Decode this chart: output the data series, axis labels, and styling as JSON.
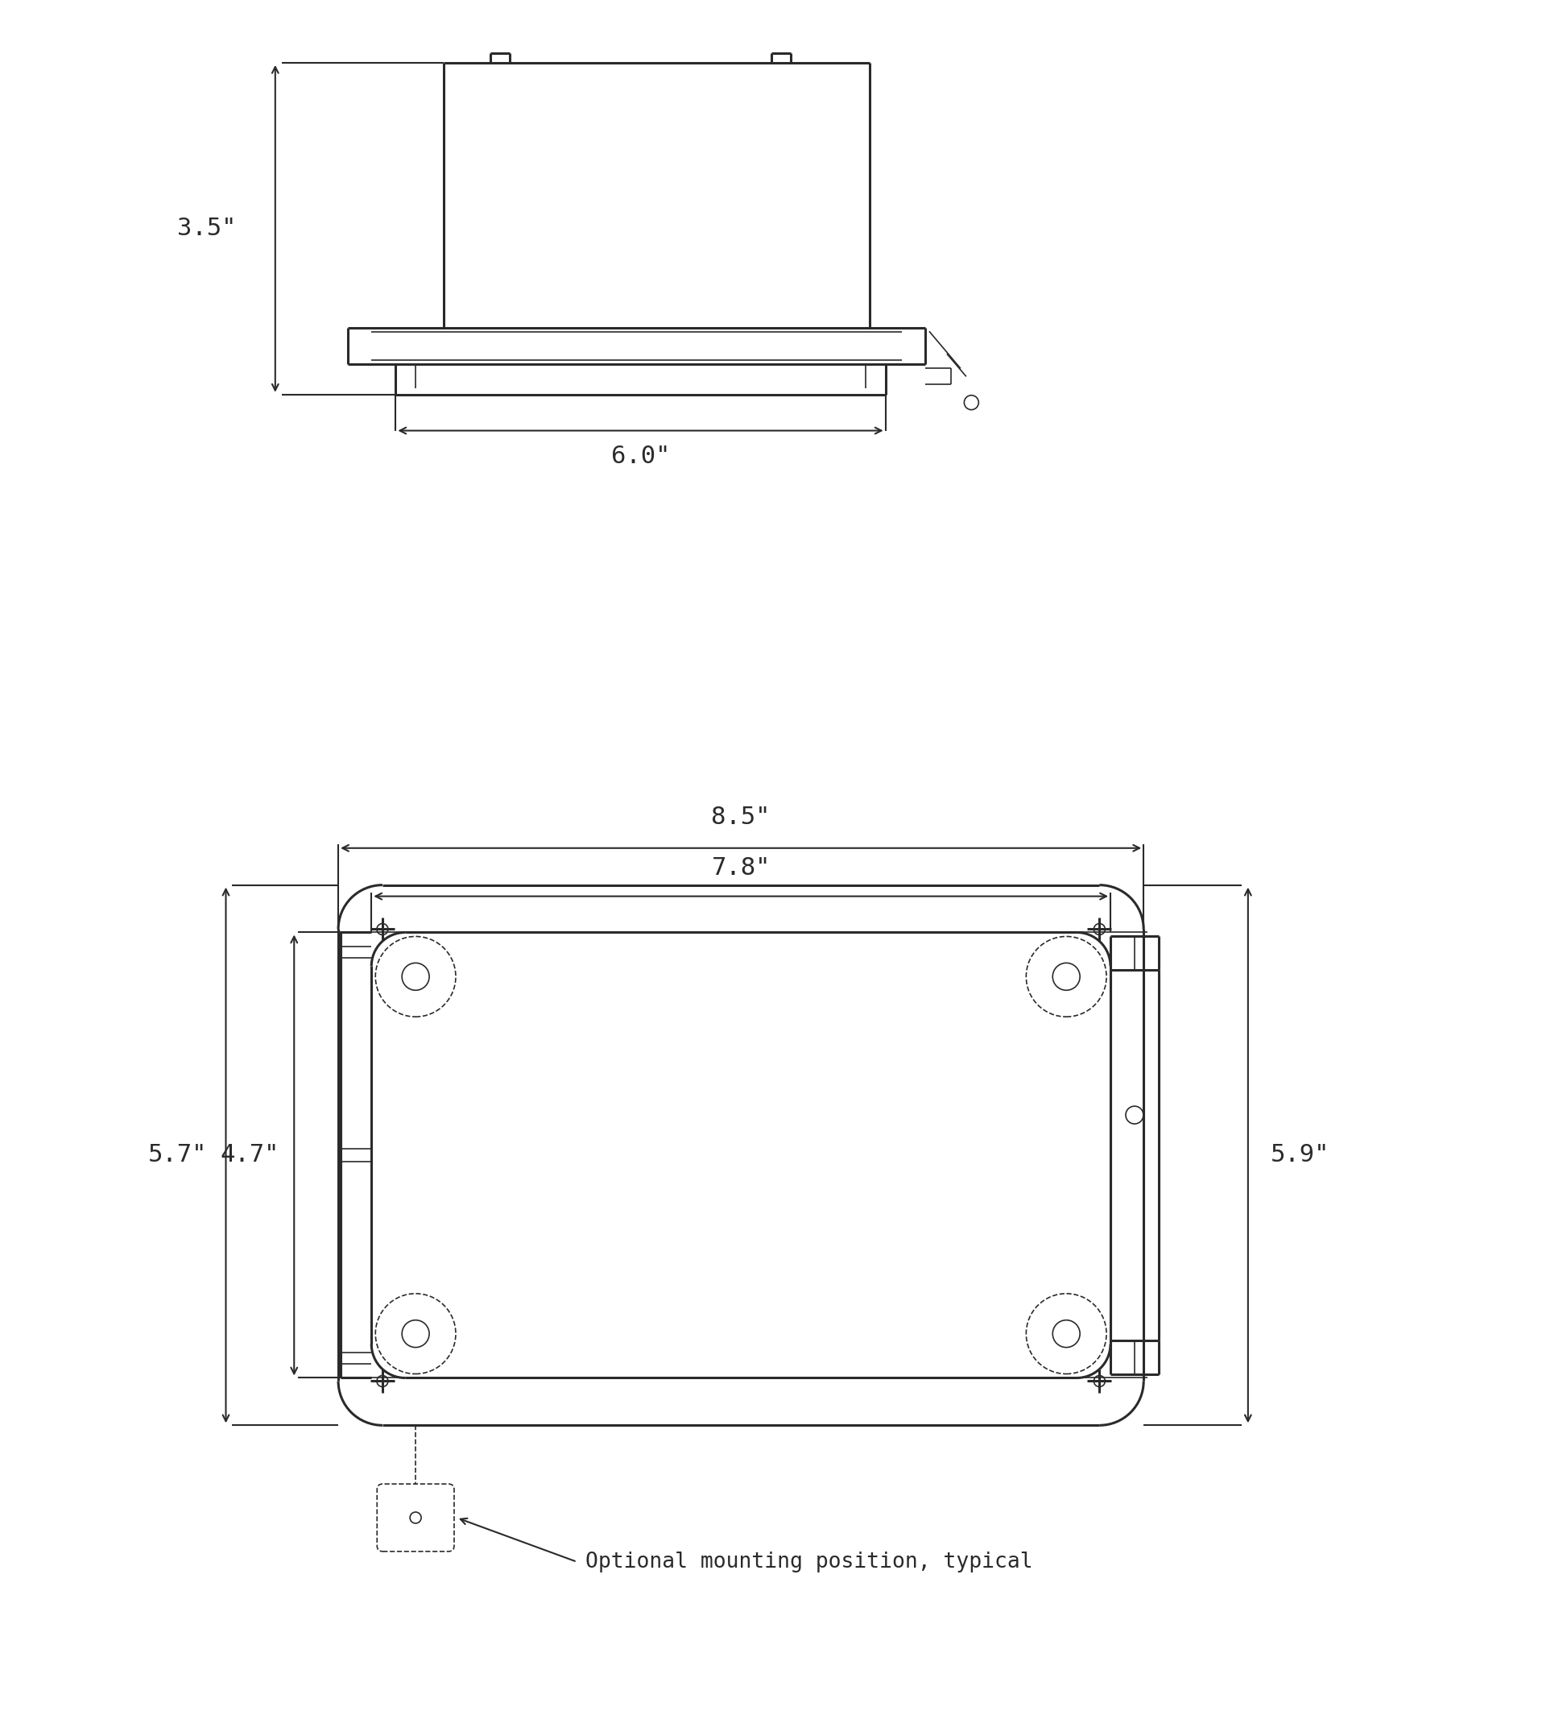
{
  "bg_color": "#ffffff",
  "line_color": "#2a2a2a",
  "text_color": "#2a2a2a",
  "font_size_dim": 22,
  "font_size_label": 19,
  "dimensions": {
    "height_35": "3.5\"",
    "width_60": "6.0\"",
    "width_85": "8.5\"",
    "width_78": "7.8\"",
    "height_57": "5.7\"",
    "height_47": "4.7\"",
    "height_59": "5.9\""
  },
  "annotation": "Optional mounting position, typical"
}
